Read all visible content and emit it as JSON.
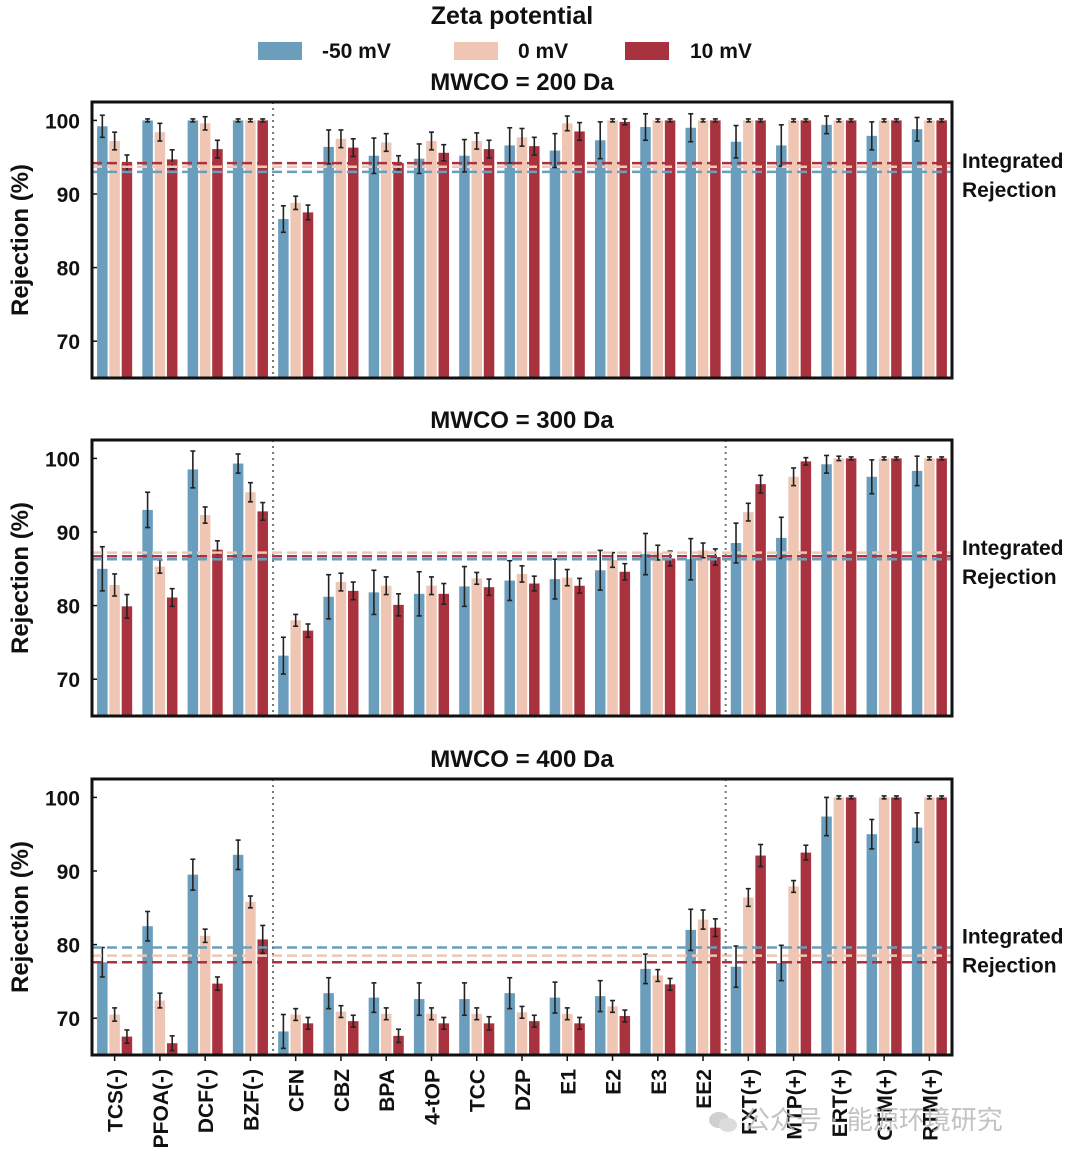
{
  "legend": {
    "title": "Zeta potential",
    "entries": [
      {
        "label": "-50 mV",
        "color": "#6b9ebd"
      },
      {
        "label": "0 mV",
        "color": "#efc6b4"
      },
      {
        "label": "10 mV",
        "color": "#a9323f"
      }
    ]
  },
  "integrated_label": [
    "Integrated",
    "Rejection"
  ],
  "watermark": "公众号 · 能源环境研究",
  "chart_data": [
    {
      "type": "bar",
      "title": "MWCO = 200 Da",
      "ylabel": "Rejection (%)",
      "ylim": [
        65,
        102.5
      ],
      "yticks": [
        70,
        80,
        90,
        100
      ],
      "categories": [
        "TCS(-)",
        "PFOA(-)",
        "DCF(-)",
        "BZF(-)",
        "CFN",
        "CBZ",
        "BPA",
        "4-tOP",
        "TCC",
        "DZP",
        "E1",
        "E2",
        "E3",
        "EE2",
        "FXT(+)",
        "MTP(+)",
        "ERT(+)",
        "CTM(+)",
        "RTM(+)"
      ],
      "dividers_after": [
        3
      ],
      "series": [
        {
          "name": "-50 mV",
          "values": [
            99.2,
            100,
            100,
            100,
            86.6,
            96.4,
            95.2,
            94.8,
            95.2,
            96.6,
            95.9,
            97.3,
            99.1,
            99.0,
            97.1,
            96.6,
            99.4,
            97.9,
            98.8
          ],
          "errors": [
            1.5,
            0.2,
            0.2,
            0.2,
            1.8,
            2.3,
            2.4,
            2.0,
            2.2,
            2.4,
            2.3,
            2.5,
            1.8,
            1.9,
            2.2,
            2.8,
            1.2,
            1.9,
            1.6
          ]
        },
        {
          "name": "0 mV",
          "values": [
            97.2,
            98.4,
            99.6,
            100,
            88.8,
            97.5,
            97.0,
            97.2,
            97.2,
            97.7,
            99.6,
            100,
            100,
            100,
            100,
            100,
            100,
            100,
            100
          ],
          "errors": [
            1.2,
            1.2,
            0.9,
            0.2,
            0.9,
            1.2,
            1.2,
            1.2,
            1.1,
            1.2,
            1.0,
            0.2,
            0.2,
            0.2,
            0.2,
            0.2,
            0.2,
            0.2,
            0.2
          ]
        },
        {
          "name": "10 mV",
          "values": [
            94.2,
            94.7,
            96.1,
            100,
            87.5,
            96.3,
            94.2,
            95.6,
            96.1,
            96.5,
            98.5,
            99.8,
            100,
            100,
            100,
            100,
            100,
            100,
            100
          ],
          "errors": [
            1.1,
            1.3,
            1.2,
            0.2,
            1.0,
            1.2,
            1.0,
            1.1,
            1.2,
            1.2,
            1.2,
            0.4,
            0.2,
            0.2,
            0.2,
            0.2,
            0.2,
            0.2,
            0.2
          ]
        }
      ],
      "integrated": {
        "-50 mV": 93.0,
        "0 mV": 93.7,
        "10 mV": 94.2
      }
    },
    {
      "type": "bar",
      "title": "MWCO = 300 Da",
      "ylabel": "Rejection (%)",
      "ylim": [
        65,
        102.5
      ],
      "yticks": [
        70,
        80,
        90,
        100
      ],
      "categories": [
        "TCS(-)",
        "PFOA(-)",
        "DCF(-)",
        "BZF(-)",
        "CFN",
        "CBZ",
        "BPA",
        "4-tOP",
        "TCC",
        "DZP",
        "E1",
        "E2",
        "E3",
        "EE2",
        "FXT(+)",
        "MTP(+)",
        "ERT(+)",
        "CTM(+)",
        "RTM(+)"
      ],
      "dividers_after": [
        3,
        13
      ],
      "series": [
        {
          "name": "-50 mV",
          "values": [
            85.0,
            93.0,
            98.5,
            99.3,
            73.2,
            81.2,
            81.8,
            81.6,
            82.6,
            83.4,
            83.6,
            84.8,
            87.0,
            86.3,
            88.5,
            89.2,
            99.2,
            97.5,
            98.3
          ],
          "errors": [
            3.0,
            2.4,
            2.5,
            1.3,
            2.5,
            3.0,
            3.0,
            3.0,
            2.7,
            2.7,
            2.7,
            2.7,
            2.8,
            2.8,
            2.7,
            2.8,
            1.2,
            2.3,
            2.0
          ]
        },
        {
          "name": "0 mV",
          "values": [
            82.8,
            85.3,
            92.3,
            95.4,
            78.0,
            83.2,
            82.7,
            82.7,
            83.7,
            84.3,
            83.8,
            86.2,
            87.2,
            87.5,
            92.7,
            97.5,
            100,
            100,
            100
          ],
          "errors": [
            1.5,
            0.9,
            1.1,
            1.3,
            0.8,
            1.2,
            1.2,
            1.2,
            0.8,
            1.1,
            1.1,
            1.0,
            1.0,
            1.0,
            1.2,
            1.2,
            0.3,
            0.2,
            0.2
          ]
        },
        {
          "name": "10 mV",
          "values": [
            79.9,
            81.1,
            87.6,
            92.8,
            76.6,
            82.0,
            80.1,
            81.6,
            82.5,
            83.0,
            82.7,
            84.6,
            86.4,
            86.6,
            96.5,
            99.6,
            100,
            100,
            100
          ],
          "errors": [
            1.6,
            1.2,
            1.2,
            1.2,
            0.9,
            1.2,
            1.5,
            1.4,
            1.1,
            1.0,
            1.0,
            1.1,
            1.0,
            1.1,
            1.2,
            0.5,
            0.2,
            0.2,
            0.2
          ]
        }
      ],
      "integrated": {
        "-50 mV": 86.3,
        "0 mV": 87.2,
        "10 mV": 86.7
      }
    },
    {
      "type": "bar",
      "title": "MWCO = 400 Da",
      "ylabel": "Rejection (%)",
      "ylim": [
        65,
        102.5
      ],
      "yticks": [
        70,
        80,
        90,
        100
      ],
      "categories": [
        "TCS(-)",
        "PFOA(-)",
        "DCF(-)",
        "BZF(-)",
        "CFN",
        "CBZ",
        "BPA",
        "4-tOP",
        "TCC",
        "DZP",
        "E1",
        "E2",
        "E3",
        "EE2",
        "FXT(+)",
        "MTP(+)",
        "ERT(+)",
        "CTM(+)",
        "RTM(+)"
      ],
      "dividers_after": [
        3,
        13
      ],
      "series": [
        {
          "name": "-50 mV",
          "values": [
            77.6,
            82.5,
            89.5,
            92.2,
            68.2,
            73.4,
            72.8,
            72.6,
            72.6,
            73.4,
            72.8,
            73.0,
            76.7,
            82.0,
            77.0,
            77.5,
            97.4,
            95.0,
            95.9
          ],
          "errors": [
            2.0,
            2.0,
            2.1,
            2.0,
            2.3,
            2.1,
            2.0,
            2.2,
            2.2,
            2.1,
            2.1,
            2.1,
            2.0,
            2.8,
            2.8,
            2.4,
            2.6,
            2.0,
            2.0
          ]
        },
        {
          "name": "0 mV",
          "values": [
            70.5,
            72.4,
            81.2,
            85.8,
            70.5,
            70.9,
            70.6,
            70.6,
            70.6,
            70.8,
            70.6,
            71.6,
            75.8,
            83.4,
            86.4,
            87.9,
            100,
            100,
            100
          ],
          "errors": [
            0.9,
            1.0,
            0.9,
            0.8,
            0.8,
            0.8,
            0.8,
            0.8,
            0.8,
            0.8,
            0.8,
            0.8,
            0.8,
            1.3,
            1.2,
            0.8,
            0.2,
            0.2,
            0.2
          ]
        },
        {
          "name": "10 mV",
          "values": [
            67.5,
            66.6,
            74.7,
            80.7,
            69.3,
            69.6,
            67.6,
            69.3,
            69.3,
            69.6,
            69.3,
            70.3,
            74.6,
            82.3,
            92.1,
            92.5,
            100,
            100,
            100
          ],
          "errors": [
            0.9,
            1.0,
            0.9,
            1.9,
            0.8,
            0.8,
            0.9,
            0.8,
            0.9,
            0.8,
            0.8,
            0.8,
            0.8,
            1.2,
            1.5,
            1.0,
            0.2,
            0.2,
            0.2
          ]
        }
      ],
      "integrated": {
        "-50 mV": 79.6,
        "0 mV": 78.5,
        "10 mV": 77.6
      }
    }
  ]
}
